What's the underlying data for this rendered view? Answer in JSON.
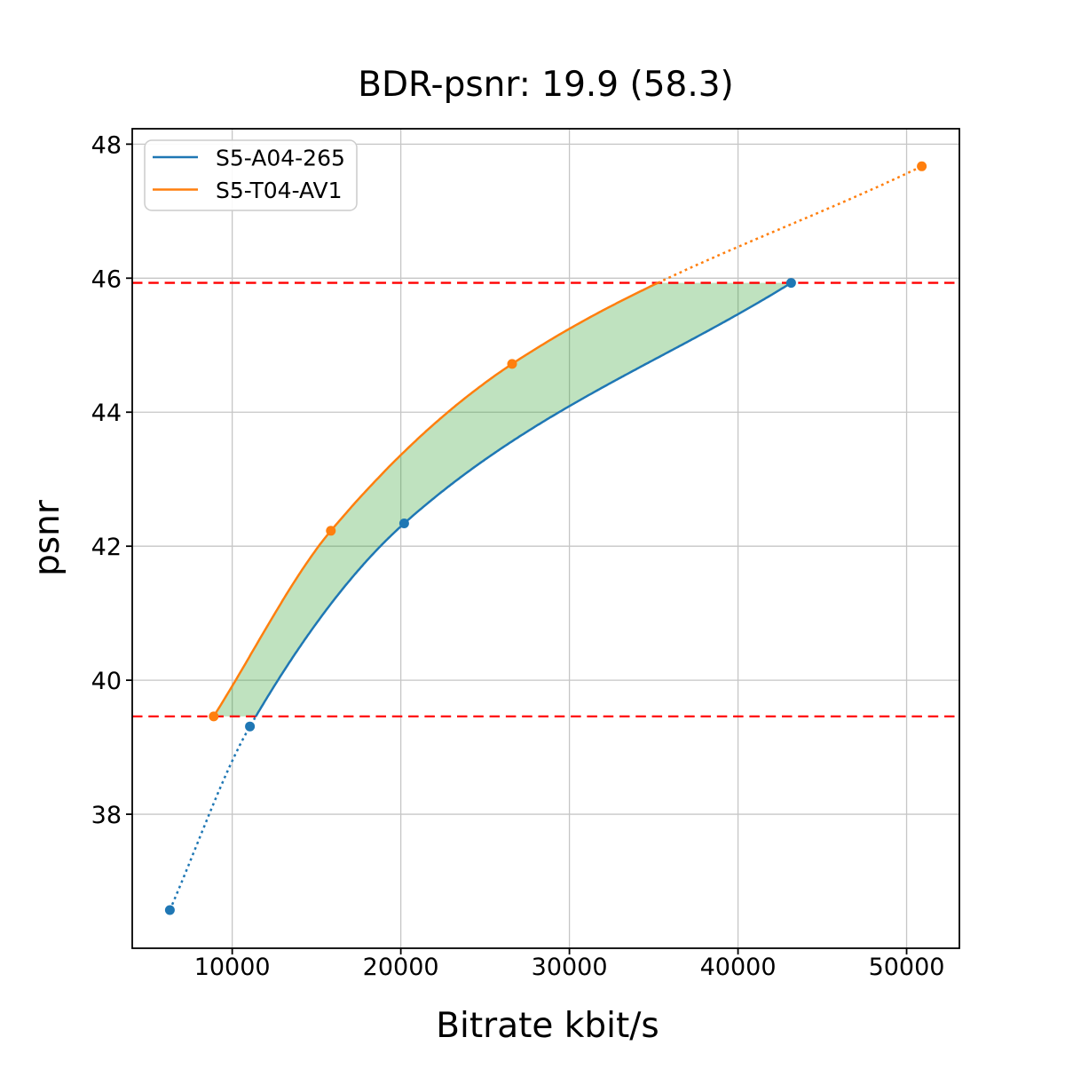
{
  "chart_data": {
    "type": "line",
    "title": "BDR-psnr: 19.9 (58.3)",
    "xlabel": "Bitrate kbit/s",
    "ylabel": "psnr",
    "xlim": [
      4070,
      53130
    ],
    "ylim": [
      36.0,
      48.23
    ],
    "xticks": [
      10000,
      20000,
      30000,
      40000,
      50000
    ],
    "yticks": [
      38,
      40,
      42,
      44,
      46,
      48
    ],
    "grid": true,
    "grid_color": "#c6c6c6",
    "legend_position": "upper left",
    "series": [
      {
        "name": "S5-A04-265",
        "color": "#1f77b4",
        "points": [
          [
            6300,
            36.57
          ],
          [
            11050,
            39.31
          ],
          [
            20200,
            42.34
          ],
          [
            43150,
            45.93
          ]
        ]
      },
      {
        "name": "S5-T04-AV1",
        "color": "#ff7f0e",
        "points": [
          [
            8900,
            39.46
          ],
          [
            15850,
            42.23
          ],
          [
            26600,
            44.72
          ],
          [
            50900,
            47.67
          ]
        ]
      }
    ],
    "overlap_lines": {
      "color": "#ff0000",
      "style": "dashed",
      "y_values": [
        45.93,
        39.46
      ]
    },
    "shaded_region": {
      "color": "#2ca02c",
      "opacity": 0.3,
      "between": [
        "S5-T04-AV1",
        "S5-A04-265"
      ],
      "y_range": [
        39.46,
        45.93
      ]
    }
  }
}
